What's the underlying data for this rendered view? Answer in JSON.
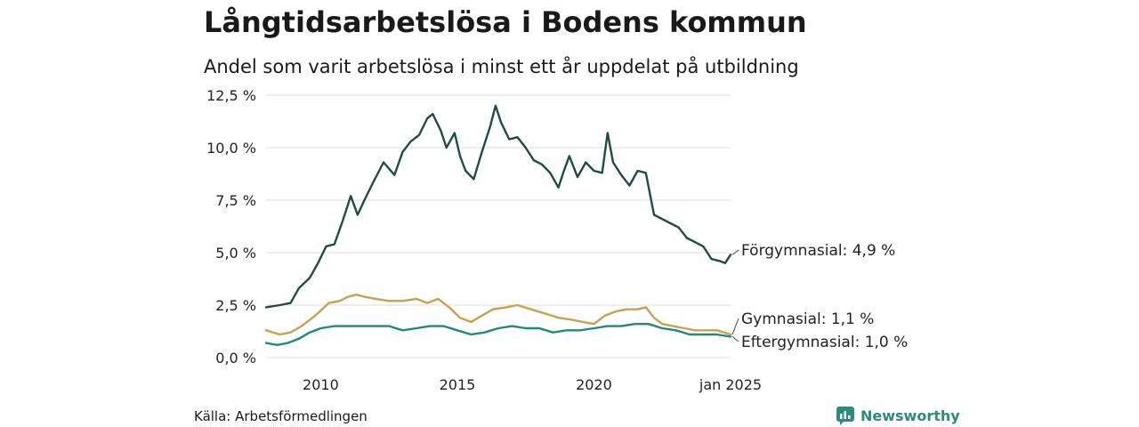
{
  "title": "Långtidsarbetslösa i Bodens kommun",
  "subtitle": "Andel som varit arbetslösa i minst ett år uppdelat på utbildning",
  "source": "Källa: Arbetsförmedlingen",
  "brand": "Newsworthy",
  "chart_data": {
    "type": "line",
    "title": "Långtidsarbetslösa i Bodens kommun",
    "subtitle": "Andel som varit arbetslösa i minst ett år uppdelat på utbildning",
    "xlabel": "",
    "ylabel": "",
    "xlim": [
      2008.0,
      2025.0
    ],
    "ylim": [
      0,
      12.5
    ],
    "y_ticks": [
      0,
      2.5,
      5,
      7.5,
      10,
      12.5
    ],
    "y_tick_labels": [
      "0,0 %",
      "2,5 %",
      "5,0 %",
      "7,5 %",
      "10,0 %",
      "12,5 %"
    ],
    "x_ticks": [
      2010,
      2015,
      2020,
      2025
    ],
    "x_tick_labels": [
      "2010",
      "2015",
      "2020",
      "jan 2025"
    ],
    "grid": "horizontal",
    "series": [
      {
        "name": "Förgymnasial",
        "end_label": "Förgymnasial: 4,9 %",
        "color": "#1f4d46",
        "points": [
          [
            2008.0,
            2.4
          ],
          [
            2008.5,
            2.5
          ],
          [
            2008.9,
            2.6
          ],
          [
            2009.2,
            3.3
          ],
          [
            2009.6,
            3.8
          ],
          [
            2009.9,
            4.5
          ],
          [
            2010.2,
            5.3
          ],
          [
            2010.5,
            5.4
          ],
          [
            2010.8,
            6.5
          ],
          [
            2011.1,
            7.7
          ],
          [
            2011.35,
            6.8
          ],
          [
            2011.6,
            7.5
          ],
          [
            2011.9,
            8.3
          ],
          [
            2012.3,
            9.3
          ],
          [
            2012.7,
            8.7
          ],
          [
            2013.0,
            9.8
          ],
          [
            2013.3,
            10.3
          ],
          [
            2013.6,
            10.6
          ],
          [
            2013.9,
            11.4
          ],
          [
            2014.1,
            11.6
          ],
          [
            2014.4,
            10.8
          ],
          [
            2014.6,
            10.0
          ],
          [
            2014.9,
            10.7
          ],
          [
            2015.1,
            9.6
          ],
          [
            2015.3,
            8.9
          ],
          [
            2015.6,
            8.5
          ],
          [
            2015.9,
            9.8
          ],
          [
            2016.2,
            11.0
          ],
          [
            2016.4,
            12.0
          ],
          [
            2016.6,
            11.2
          ],
          [
            2016.9,
            10.4
          ],
          [
            2017.2,
            10.5
          ],
          [
            2017.5,
            10.0
          ],
          [
            2017.8,
            9.4
          ],
          [
            2018.1,
            9.2
          ],
          [
            2018.4,
            8.8
          ],
          [
            2018.7,
            8.1
          ],
          [
            2018.9,
            8.9
          ],
          [
            2019.1,
            9.6
          ],
          [
            2019.4,
            8.6
          ],
          [
            2019.7,
            9.3
          ],
          [
            2020.0,
            8.9
          ],
          [
            2020.3,
            8.8
          ],
          [
            2020.5,
            10.7
          ],
          [
            2020.7,
            9.3
          ],
          [
            2021.0,
            8.7
          ],
          [
            2021.3,
            8.2
          ],
          [
            2021.6,
            8.9
          ],
          [
            2021.9,
            8.8
          ],
          [
            2022.2,
            6.8
          ],
          [
            2022.5,
            6.6
          ],
          [
            2022.8,
            6.4
          ],
          [
            2023.1,
            6.2
          ],
          [
            2023.4,
            5.7
          ],
          [
            2023.7,
            5.5
          ],
          [
            2024.0,
            5.3
          ],
          [
            2024.3,
            4.7
          ],
          [
            2024.6,
            4.6
          ],
          [
            2024.8,
            4.5
          ],
          [
            2025.0,
            4.9
          ]
        ]
      },
      {
        "name": "Gymnasial",
        "end_label": "Gymnasial: 1,1 %",
        "color": "#c9a050",
        "points": [
          [
            2008.0,
            1.3
          ],
          [
            2008.5,
            1.1
          ],
          [
            2008.9,
            1.2
          ],
          [
            2009.3,
            1.5
          ],
          [
            2009.8,
            2.0
          ],
          [
            2010.3,
            2.6
          ],
          [
            2010.7,
            2.7
          ],
          [
            2011.0,
            2.9
          ],
          [
            2011.3,
            3.0
          ],
          [
            2011.6,
            2.9
          ],
          [
            2012.0,
            2.8
          ],
          [
            2012.5,
            2.7
          ],
          [
            2013.0,
            2.7
          ],
          [
            2013.5,
            2.8
          ],
          [
            2013.9,
            2.6
          ],
          [
            2014.3,
            2.8
          ],
          [
            2014.7,
            2.4
          ],
          [
            2015.1,
            1.9
          ],
          [
            2015.5,
            1.7
          ],
          [
            2015.9,
            2.0
          ],
          [
            2016.3,
            2.3
          ],
          [
            2016.8,
            2.4
          ],
          [
            2017.2,
            2.5
          ],
          [
            2017.7,
            2.3
          ],
          [
            2018.2,
            2.1
          ],
          [
            2018.7,
            1.9
          ],
          [
            2019.2,
            1.8
          ],
          [
            2019.6,
            1.7
          ],
          [
            2020.0,
            1.6
          ],
          [
            2020.4,
            2.0
          ],
          [
            2020.8,
            2.2
          ],
          [
            2021.2,
            2.3
          ],
          [
            2021.6,
            2.3
          ],
          [
            2021.9,
            2.4
          ],
          [
            2022.2,
            1.9
          ],
          [
            2022.5,
            1.6
          ],
          [
            2022.9,
            1.5
          ],
          [
            2023.3,
            1.4
          ],
          [
            2023.7,
            1.3
          ],
          [
            2024.1,
            1.3
          ],
          [
            2024.5,
            1.3
          ],
          [
            2025.0,
            1.1
          ]
        ]
      },
      {
        "name": "Eftergymnasial",
        "end_label": "Eftergymnasial: 1,0 %",
        "color": "#1f8a7a",
        "points": [
          [
            2008.0,
            0.7
          ],
          [
            2008.4,
            0.6
          ],
          [
            2008.8,
            0.7
          ],
          [
            2009.2,
            0.9
          ],
          [
            2009.6,
            1.2
          ],
          [
            2010.0,
            1.4
          ],
          [
            2010.5,
            1.5
          ],
          [
            2011.0,
            1.5
          ],
          [
            2011.5,
            1.5
          ],
          [
            2012.0,
            1.5
          ],
          [
            2012.5,
            1.5
          ],
          [
            2013.0,
            1.3
          ],
          [
            2013.5,
            1.4
          ],
          [
            2014.0,
            1.5
          ],
          [
            2014.5,
            1.5
          ],
          [
            2015.0,
            1.3
          ],
          [
            2015.5,
            1.1
          ],
          [
            2016.0,
            1.2
          ],
          [
            2016.5,
            1.4
          ],
          [
            2017.0,
            1.5
          ],
          [
            2017.5,
            1.4
          ],
          [
            2018.0,
            1.4
          ],
          [
            2018.5,
            1.2
          ],
          [
            2019.0,
            1.3
          ],
          [
            2019.5,
            1.3
          ],
          [
            2020.0,
            1.4
          ],
          [
            2020.5,
            1.5
          ],
          [
            2021.0,
            1.5
          ],
          [
            2021.5,
            1.6
          ],
          [
            2022.0,
            1.6
          ],
          [
            2022.5,
            1.4
          ],
          [
            2023.0,
            1.3
          ],
          [
            2023.5,
            1.1
          ],
          [
            2024.0,
            1.1
          ],
          [
            2024.5,
            1.1
          ],
          [
            2025.0,
            1.0
          ]
        ]
      }
    ]
  }
}
